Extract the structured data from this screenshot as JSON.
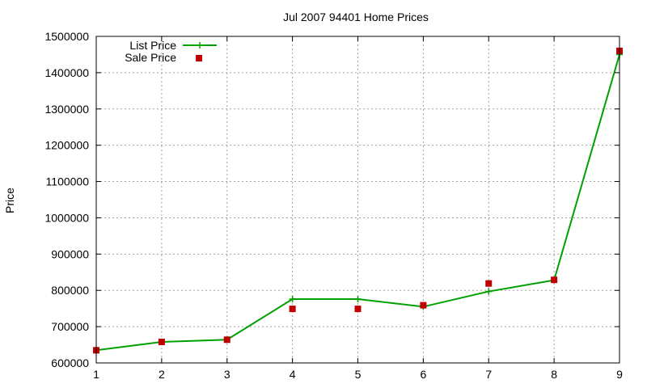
{
  "chart_data": {
    "type": "line",
    "title": "Jul 2007 94401 Home Prices",
    "xlabel": "",
    "ylabel": "Price",
    "x": [
      1,
      2,
      3,
      4,
      5,
      6,
      7,
      8,
      9
    ],
    "xlim": [
      1,
      9
    ],
    "ylim": [
      600000,
      1500000
    ],
    "xticks": [
      "1",
      "2",
      "3",
      "4",
      "5",
      "6",
      "7",
      "8",
      "9"
    ],
    "yticks": [
      "600000",
      "700000",
      "800000",
      "900000",
      "1000000",
      "1100000",
      "1200000",
      "1300000",
      "1400000",
      "1500000"
    ],
    "grid": true,
    "legend_position": "top-left",
    "series": [
      {
        "name": "List Price",
        "style": "line-with-plus-markers",
        "color": "#00a000",
        "values": [
          635000,
          658000,
          664000,
          776000,
          776000,
          755000,
          797000,
          828000,
          1450000
        ]
      },
      {
        "name": "Sale Price",
        "style": "square-markers",
        "color": "#c00000",
        "values": [
          635000,
          658000,
          664000,
          749000,
          749000,
          759000,
          819000,
          829000,
          1460000
        ]
      }
    ]
  }
}
